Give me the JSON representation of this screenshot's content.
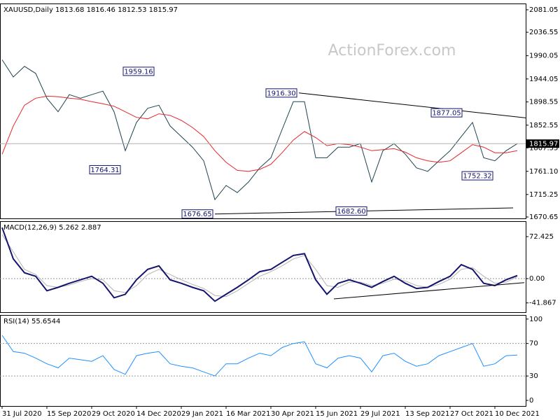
{
  "chart_data": [
    {
      "type": "line",
      "title": "XAUUSD,Daily  1813.68 1816.46 1812.53 1815.97",
      "watermark": "ActionForex.com",
      "x": [
        0,
        8,
        16,
        24,
        32,
        40,
        48,
        56,
        64,
        72,
        80,
        88,
        96,
        104,
        112,
        120,
        128,
        136,
        144,
        152,
        160,
        168,
        176,
        184,
        192,
        200,
        208,
        216,
        224,
        232,
        240,
        248,
        256,
        264,
        272,
        280,
        288,
        296,
        304,
        312,
        320,
        328,
        336,
        344,
        352,
        360,
        368
      ],
      "xlim": [
        -1.5,
        374
      ],
      "ylim": [
        1667.9,
        2093.5
      ],
      "yticks": [
        2081.05,
        2036.55,
        1990.05,
        1944.05,
        1898.55,
        1852.55,
        1807.55,
        {
          "value": 1761.1,
          "label": "1761.10"
        },
        1715.25,
        1670.65
      ],
      "series": [
        {
          "color": "#1e4450",
          "values": [
            1982,
            1948,
            1969,
            1955,
            1906,
            1879,
            1913,
            1906,
            1913,
            1920,
            1879,
            1802,
            1858,
            1886,
            1892,
            1851,
            1830,
            1809,
            1782,
            1705,
            1733,
            1719,
            1740,
            1768,
            1788,
            1844,
            1899,
            1899,
            1788,
            1788,
            1809,
            1809,
            1816,
            1740,
            1802,
            1816,
            1795,
            1768,
            1761,
            1782,
            1802,
            1830,
            1858,
            1788,
            1782,
            1802,
            1815.97
          ]
        },
        {
          "color": "#e5262b",
          "values": [
            1795,
            1851,
            1892,
            1906,
            1910,
            1909,
            1906,
            1904,
            1899,
            1895,
            1890,
            1879,
            1868,
            1865,
            1875,
            1872,
            1862,
            1848,
            1830,
            1802,
            1779,
            1763,
            1761,
            1765,
            1775,
            1798,
            1823,
            1840,
            1828,
            1812,
            1816,
            1814,
            1809,
            1802,
            1804,
            1806,
            1799,
            1788,
            1782,
            1779,
            1782,
            1798,
            1814,
            1809,
            1798,
            1798,
            1802
          ]
        }
      ],
      "trendlines": [
        {
          "x": [
            212,
            374
          ],
          "values": [
            1916.3,
            1867
          ]
        },
        {
          "x": [
            152,
            365
          ],
          "values": [
            1676.65,
            1688.7
          ]
        }
      ],
      "annotations": [
        {
          "x": 110,
          "value": 1959.16
        },
        {
          "x": 86,
          "value": 1764.31
        },
        {
          "x": 152,
          "value": 1676.65
        },
        {
          "x": 212,
          "value": 1916.3,
          "label": "1916.30"
        },
        {
          "x": 330,
          "value": 1877.05
        },
        {
          "x": 262,
          "value": 1682.6,
          "label": "1682.60"
        },
        {
          "x": 352,
          "value": 1752.32
        }
      ],
      "last_price": 1815.97
    },
    {
      "type": "line",
      "title": "MACD(12,26,9) 5.262 2.887",
      "x": [
        0,
        8,
        16,
        24,
        32,
        40,
        48,
        56,
        64,
        72,
        80,
        88,
        96,
        104,
        112,
        120,
        128,
        136,
        144,
        152,
        160,
        168,
        176,
        184,
        192,
        200,
        208,
        216,
        224,
        232,
        240,
        248,
        256,
        264,
        272,
        280,
        288,
        296,
        304,
        312,
        320,
        328,
        336,
        344,
        352,
        360,
        368
      ],
      "xlim": [
        -1.5,
        374
      ],
      "ylim": [
        -57.9,
        99
      ],
      "yticks": [
        72.425,
        {
          "value": 0,
          "label": "0.00"
        },
        -41.867
      ],
      "levels": [
        0
      ],
      "series": [
        {
          "color": "#b4b4b4",
          "values": [
            76,
            46,
            16,
            7,
            -12,
            -15,
            -11,
            -5,
            0,
            -2,
            -21,
            -24,
            -12,
            7,
            16,
            7,
            -2,
            -10,
            -17,
            -29,
            -31,
            -21,
            -8,
            4,
            12,
            22,
            34,
            40,
            16,
            -12,
            -15,
            -6,
            -6,
            -12,
            -8,
            -1,
            -4,
            -12,
            -15,
            -10,
            -1,
            16,
            19,
            4,
            -8,
            -6,
            2.887
          ]
        },
        {
          "color": "#14146e",
          "width": 2,
          "values": [
            88,
            34,
            10,
            4,
            -21,
            -15,
            -8,
            -2,
            4,
            -8,
            -33,
            -27,
            -2,
            16,
            22,
            -2,
            -8,
            -15,
            -21,
            -39,
            -27,
            -15,
            -2,
            12,
            16,
            28,
            40,
            43,
            -2,
            -27,
            -8,
            -2,
            -8,
            -15,
            -5,
            4,
            -8,
            -17,
            -15,
            -5,
            4,
            24,
            16,
            -8,
            -12,
            -2,
            5.262
          ]
        }
      ],
      "trendlines": [
        {
          "x": [
            237,
            373
          ],
          "values": [
            -35,
            -7
          ]
        }
      ]
    },
    {
      "type": "line",
      "title": "RSI(14) 55.6544",
      "x": [
        0,
        8,
        16,
        24,
        32,
        40,
        48,
        56,
        64,
        72,
        80,
        88,
        96,
        104,
        112,
        120,
        128,
        136,
        144,
        152,
        160,
        168,
        176,
        184,
        192,
        200,
        208,
        216,
        224,
        232,
        240,
        248,
        256,
        264,
        272,
        280,
        288,
        296,
        304,
        312,
        320,
        328,
        336,
        344,
        352,
        360,
        368
      ],
      "xlim": [
        -1.5,
        374
      ],
      "ylim": [
        -6.9,
        105
      ],
      "yticks": [
        100,
        70,
        30,
        0
      ],
      "levels": [
        70,
        30
      ],
      "series": [
        {
          "color": "#1e90ff",
          "values": [
            80,
            60,
            58,
            52,
            45,
            40,
            52,
            50,
            48,
            55,
            38,
            32,
            55,
            58,
            60,
            45,
            42,
            40,
            35,
            30,
            45,
            45,
            52,
            58,
            55,
            65,
            70,
            72,
            45,
            40,
            52,
            55,
            52,
            35,
            55,
            58,
            48,
            42,
            45,
            55,
            60,
            65,
            70,
            42,
            45,
            55,
            55.6544
          ]
        }
      ],
      "xticks": [
        {
          "value": 0,
          "label": "31 Jul 2020"
        },
        {
          "value": 32,
          "label": "15 Sep 2020"
        },
        {
          "value": 64,
          "label": "29 Oct 2020"
        },
        {
          "value": 96,
          "label": "14 Dec 2020"
        },
        {
          "value": 128,
          "label": "29 Jan 2021"
        },
        {
          "value": 160,
          "label": "16 Mar 2021"
        },
        {
          "value": 192,
          "label": "30 Apr 2021"
        },
        {
          "value": 224,
          "label": "15 Jun 2021"
        },
        {
          "value": 256,
          "label": "29 Jul 2021"
        },
        {
          "value": 288,
          "label": "13 Sep 2021"
        },
        {
          "value": 320,
          "label": "27 Oct 2021"
        },
        {
          "value": 352,
          "label": "10 Dec 2021"
        }
      ]
    }
  ]
}
